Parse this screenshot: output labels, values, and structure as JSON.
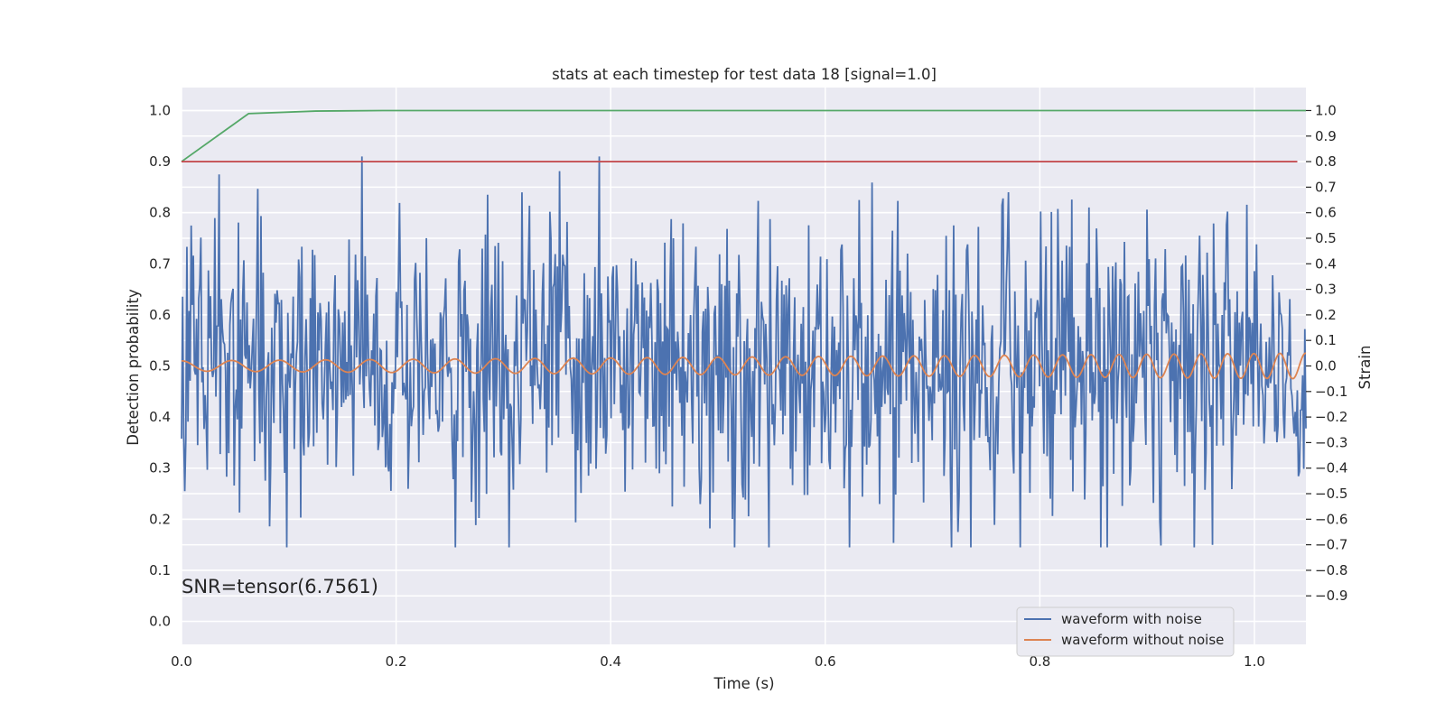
{
  "chart_data": {
    "type": "line",
    "title": "stats at each timestep for test data 18 [signal=1.0]",
    "xlabel": "Time (s)",
    "ylabel_left": "Detection probability",
    "ylabel_right": "Strain",
    "xlim": [
      0.0,
      1.048
    ],
    "ylim_left": [
      -0.045,
      1.045
    ],
    "ylim_right": [
      -1.09,
      1.09
    ],
    "x_ticks": [
      0.0,
      0.2,
      0.4,
      0.6,
      0.8,
      1.0
    ],
    "x_tick_labels": [
      "0.0",
      "0.2",
      "0.4",
      "0.6",
      "0.8",
      "1.0"
    ],
    "y_left_ticks": [
      0.0,
      0.1,
      0.2,
      0.3,
      0.4,
      0.5,
      0.6,
      0.7,
      0.8,
      0.9,
      1.0
    ],
    "y_left_tick_labels": [
      "0.0",
      "0.1",
      "0.2",
      "0.3",
      "0.4",
      "0.5",
      "0.6",
      "0.7",
      "0.8",
      "0.9",
      "1.0"
    ],
    "y_right_ticks": [
      -0.9,
      -0.8,
      -0.7,
      -0.6,
      -0.5,
      -0.4,
      -0.3,
      -0.2,
      -0.1,
      0.0,
      0.1,
      0.2,
      0.3,
      0.4,
      0.5,
      0.6,
      0.7,
      0.8,
      0.9,
      1.0
    ],
    "y_right_tick_labels": [
      "−0.9",
      "−0.8",
      "−0.7",
      "−0.6",
      "−0.5",
      "−0.4",
      "−0.3",
      "−0.2",
      "−0.1",
      "0.0",
      "0.1",
      "0.2",
      "0.3",
      "0.4",
      "0.5",
      "0.6",
      "0.7",
      "0.8",
      "0.9",
      "1.0"
    ],
    "grid": true,
    "legend_position": "lower-right",
    "annotation": "SNR=tensor(6.7561)",
    "series": [
      {
        "name": "waveform with noise",
        "axis": "right",
        "color": "#4c72b0",
        "x_range": [
          0.0,
          1.048
        ],
        "n_points": 1048,
        "noise_std": 0.3,
        "min": -0.71,
        "max": 0.82
      },
      {
        "name": "waveform without noise",
        "axis": "right",
        "color": "#dd8452",
        "x_range": [
          0.0,
          1.048
        ],
        "start_amplitude": 0.02,
        "end_amplitude": 0.05,
        "start_frequency": 21,
        "end_frequency": 42
      },
      {
        "axis": "left",
        "color": "#55a868",
        "x": [
          0.0,
          0.0625,
          0.125,
          0.1875,
          1.048
        ],
        "y": [
          0.9,
          0.994,
          0.999,
          1.0,
          1.0
        ]
      },
      {
        "axis": "left",
        "color": "#c44e52",
        "x": [
          0.0,
          1.04
        ],
        "y": [
          0.9,
          0.9
        ]
      }
    ]
  }
}
